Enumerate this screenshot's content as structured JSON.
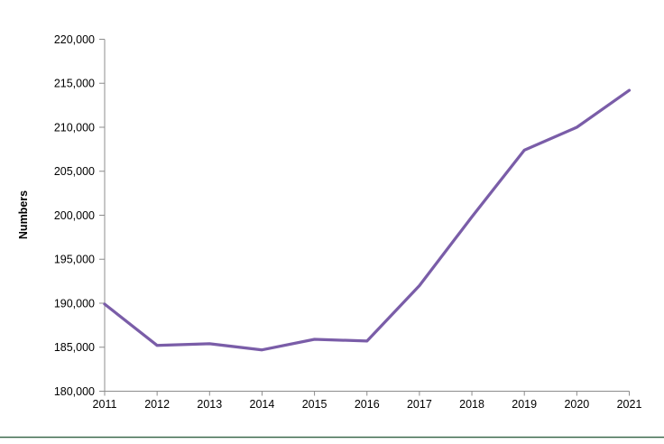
{
  "page": {
    "background": "#ffffff",
    "bottom_rule_color": "#3e6a4d"
  },
  "chart_data": {
    "type": "line",
    "title": "",
    "xlabel": "",
    "ylabel": "Numbers",
    "categories": [
      "2011",
      "2012",
      "2013",
      "2014",
      "2015",
      "2016",
      "2017",
      "2018",
      "2019",
      "2020",
      "2021"
    ],
    "series": [
      {
        "name": "Numbers",
        "color": "#7a5da8",
        "values": [
          189900,
          185200,
          185400,
          184700,
          185900,
          185700,
          192000,
          199800,
          207400,
          210000,
          214200
        ]
      }
    ],
    "ylim": [
      180000,
      220000
    ],
    "ytick_step": 5000,
    "ytick_labels": [
      "180,000",
      "185,000",
      "190,000",
      "195,000",
      "200,000",
      "205,000",
      "210,000",
      "215,000",
      "220,000"
    ],
    "grid": false,
    "legend": "none",
    "axis_color": "#8c8c8c",
    "line_width": 3.25
  }
}
